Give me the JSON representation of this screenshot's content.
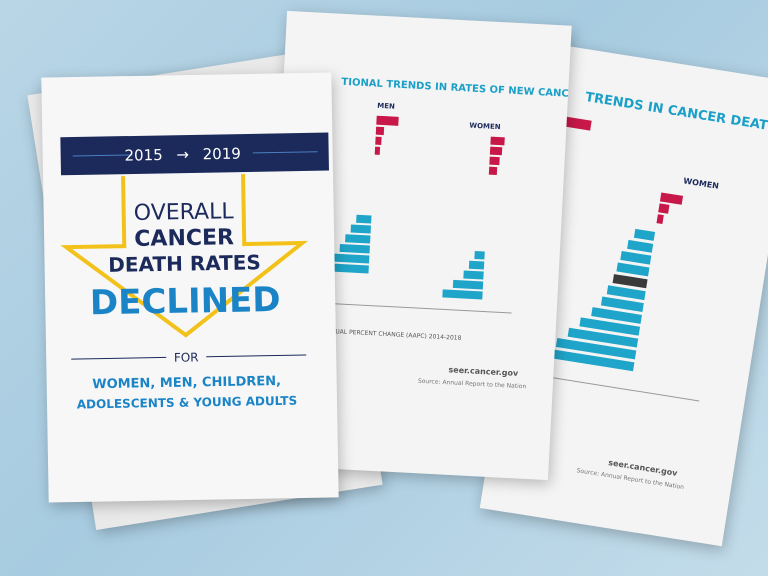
{
  "cover": {
    "year_start": "2015",
    "arrow": "→",
    "year_end": "2019",
    "line1": "OVERALL",
    "line2": "CANCER",
    "line3": "DEATH RATES",
    "line4": "DECLINED",
    "for": "FOR",
    "groups1": "WOMEN, MEN, CHILDREN,",
    "groups2": "ADOLESCENTS & YOUNG ADULTS"
  },
  "sheet_incidence": {
    "title": "TIONAL TRENDS IN RATES OF NEW CANCER CASES",
    "left_heading": "MEN",
    "right_heading": "WOMEN",
    "axis_label": "UAL PERCENT CHANGE (AAPC) 2014-2018",
    "site": "seer.cancer.gov",
    "source": "Source: Annual Report to the Nation"
  },
  "sheet_death": {
    "title": "TRENDS IN CANCER DEATH RATES",
    "heading": "WOMEN",
    "site": "seer.cancer.gov",
    "source": "Source: Annual Report to the Nation"
  }
}
